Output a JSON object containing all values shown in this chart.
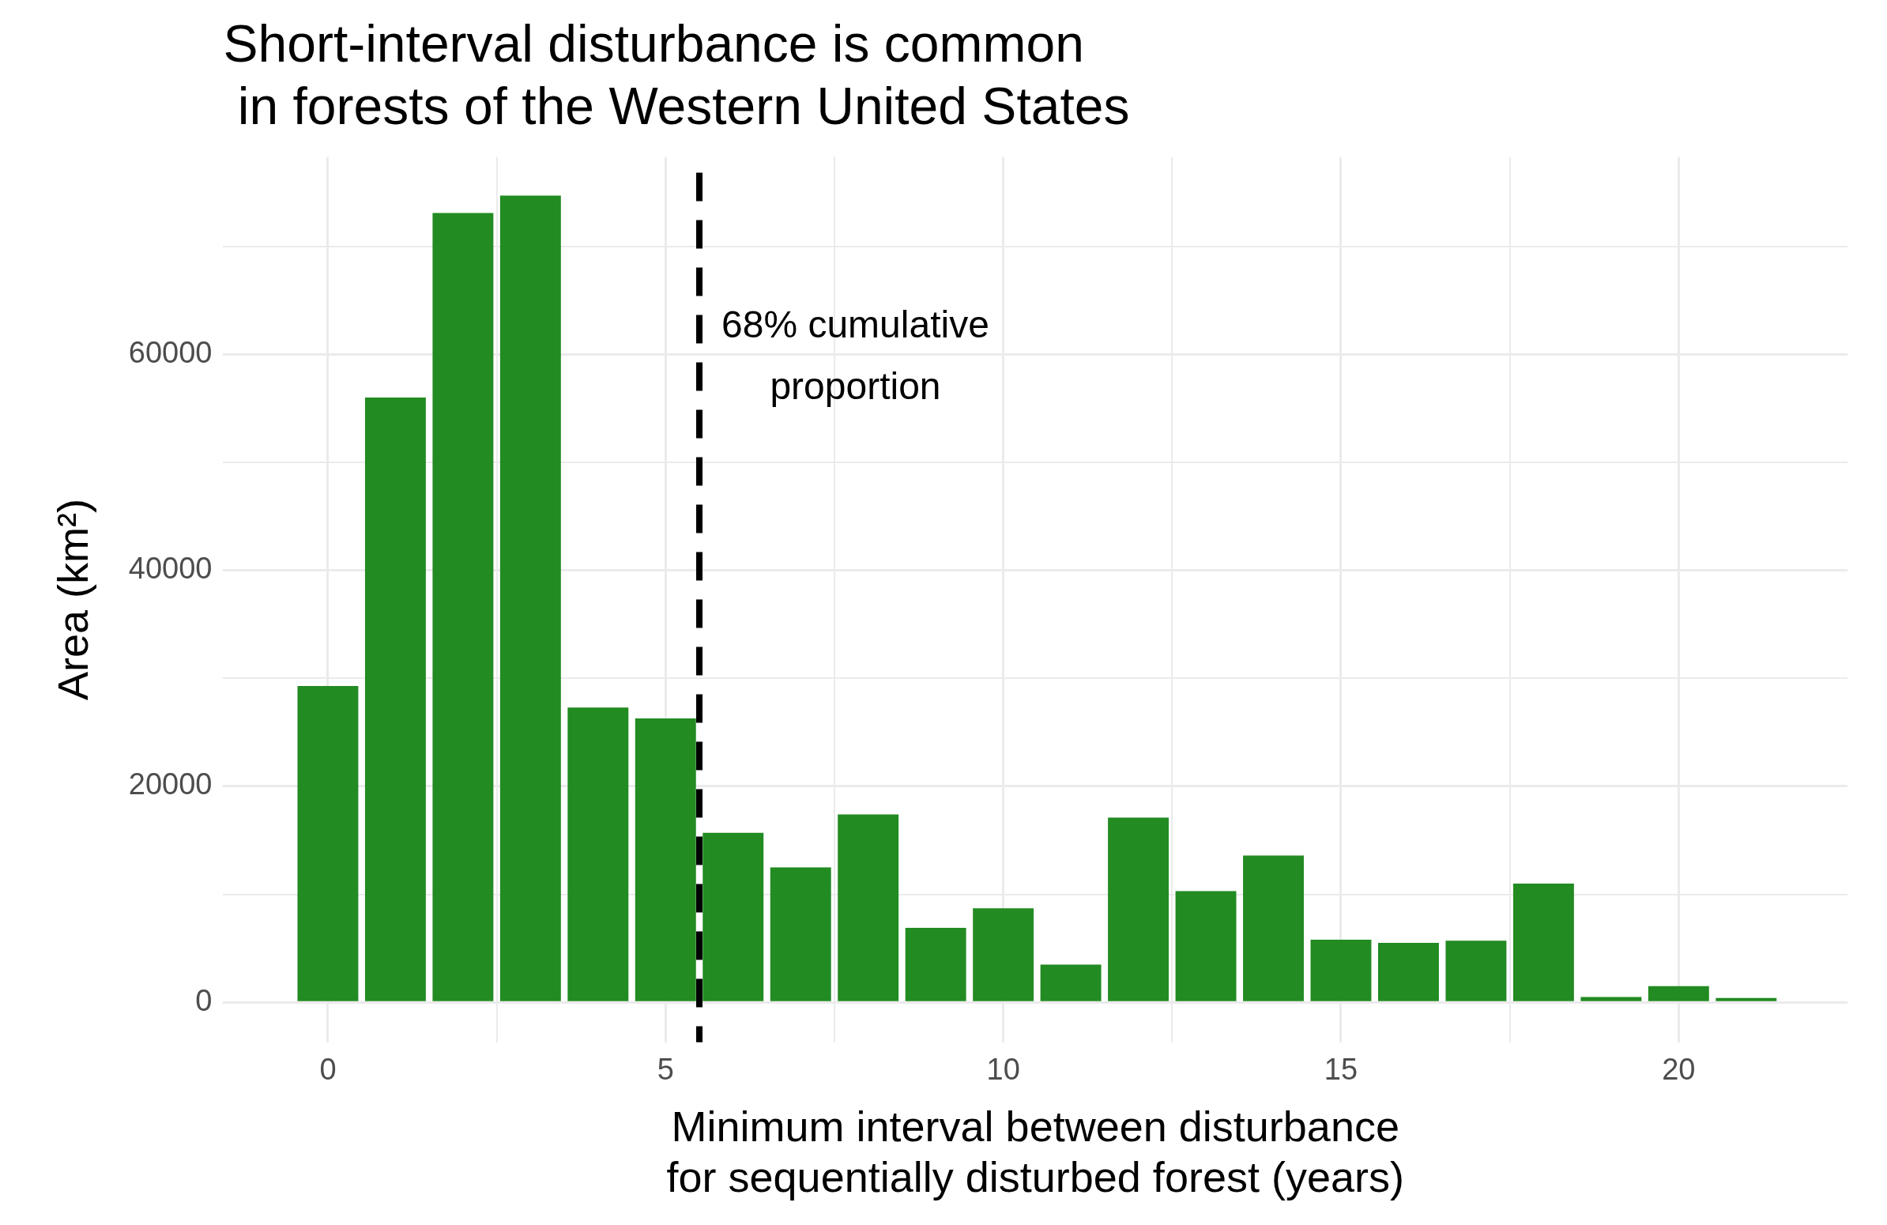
{
  "chart_data": {
    "type": "histogram",
    "title": "Short-interval disturbance is common\n in forests of the Western United States",
    "xlabel": "Minimum interval between disturbance\nfor sequentially disturbed forest (years)",
    "ylabel": "Area (km²)",
    "bins": [
      -0.5,
      0.5,
      1.5,
      2.5,
      3.5,
      4.5,
      5.5,
      6.5,
      7.5,
      8.5,
      9.5,
      10.5,
      11.5,
      12.5,
      13.5,
      14.5,
      15.5,
      16.5,
      17.5,
      18.5,
      19.5,
      20.5,
      21.5
    ],
    "values": [
      29300,
      56000,
      73100,
      74700,
      27300,
      26300,
      15700,
      12500,
      17400,
      6900,
      8700,
      3500,
      17100,
      10300,
      13600,
      5800,
      5500,
      5700,
      11000,
      500,
      1500,
      400
    ],
    "color": "#228b22",
    "xlim": [
      -1.55,
      22.5
    ],
    "xticks": [
      0,
      {
        "value": 2.5,
        "label": null
      },
      5,
      {
        "value": 7.5,
        "label": null
      },
      10,
      {
        "value": 12.5,
        "label": null
      },
      15,
      {
        "value": 17.5,
        "label": null
      },
      20
    ],
    "ylim": [
      -3700,
      78300
    ],
    "yticks": [
      0,
      {
        "value": 10000,
        "label": null
      },
      20000,
      {
        "value": 30000,
        "label": null
      },
      40000,
      {
        "value": 50000,
        "label": null
      },
      60000,
      {
        "value": 70000,
        "label": null
      }
    ],
    "grid": true,
    "ref_lines": [
      {
        "axis": "x",
        "value": 5.5,
        "label": "68% cumulative\nproportion",
        "color": "#000000",
        "line_style": "dashed"
      }
    ]
  }
}
